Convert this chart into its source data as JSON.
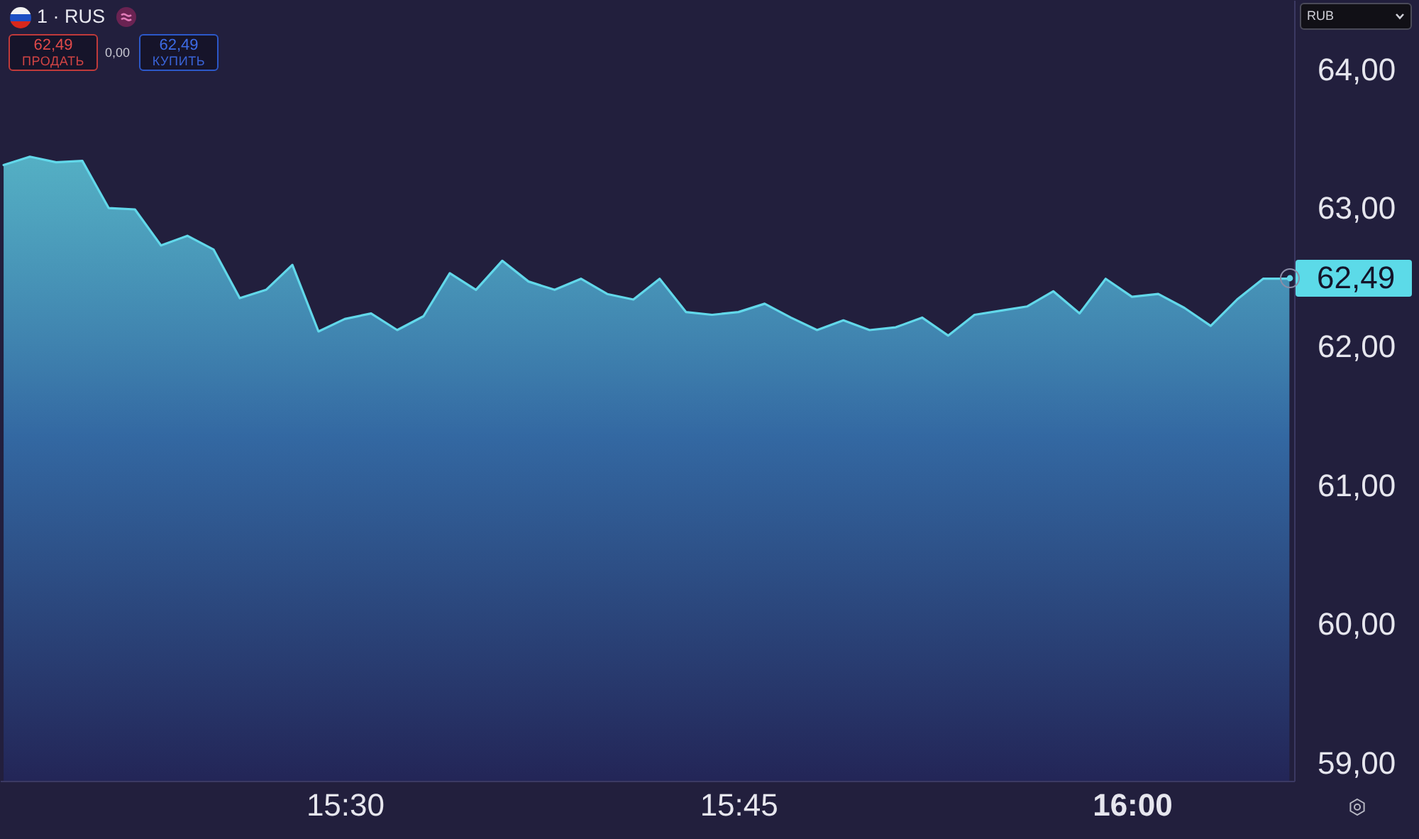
{
  "chart_data": {
    "type": "area",
    "title": "1 · RUS",
    "x": [
      15.2833,
      15.3,
      15.3167,
      15.3333,
      15.35,
      15.3667,
      15.3833,
      15.4,
      15.4167,
      15.4333,
      15.45,
      15.4667,
      15.4833,
      15.5,
      15.5167,
      15.5333,
      15.55,
      15.5667,
      15.5833,
      15.6,
      15.6167,
      15.6333,
      15.65,
      15.6667,
      15.6833,
      15.7,
      15.7167,
      15.7333,
      15.75,
      15.7667,
      15.7833,
      15.8,
      15.8167,
      15.8333,
      15.85,
      15.8667,
      15.8833,
      15.9,
      15.9167,
      15.9333,
      15.95,
      15.9667,
      15.9833,
      16,
      16.0167,
      16.0333,
      16.05,
      16.0667,
      16.0833,
      16.1
    ],
    "values": [
      63.31,
      63.37,
      63.33,
      63.34,
      63,
      62.99,
      62.73,
      62.8,
      62.7,
      62.35,
      62.41,
      62.59,
      62.11,
      62.2,
      62.24,
      62.12,
      62.22,
      62.53,
      62.41,
      62.62,
      62.47,
      62.41,
      62.49,
      62.38,
      62.34,
      62.49,
      62.25,
      62.23,
      62.25,
      62.31,
      62.21,
      62.12,
      62.19,
      62.12,
      62.14,
      62.21,
      62.08,
      62.23,
      62.26,
      62.29,
      62.4,
      62.24,
      62.49,
      62.36,
      62.38,
      62.28,
      62.15,
      62.34,
      62.49,
      62.49
    ],
    "color": "#62d8ea",
    "xlim": [
      15.281,
      16.103
    ],
    "xticks": [
      {
        "value": 15.5,
        "label": "15:30"
      },
      {
        "value": 15.75,
        "label": "15:45"
      },
      {
        "value": 16,
        "label": "16:00"
      }
    ],
    "ylim": [
      58.87,
      64.5
    ],
    "yticks": [
      {
        "value": 59,
        "label": "59,00"
      },
      {
        "value": 60,
        "label": "60,00"
      },
      {
        "value": 61,
        "label": "61,00"
      },
      {
        "value": 62,
        "label": "62,00"
      },
      {
        "value": 63,
        "label": "63,00"
      },
      {
        "value": 64,
        "label": "64,00"
      }
    ],
    "annotations": [
      "62,49",
      "ПРОДАТЬ",
      "0,00",
      "62,49",
      "КУПИТЬ",
      "RUB",
      {
        "text": "62,49",
        "x": 16.1,
        "y": 62.49
      }
    ]
  }
}
